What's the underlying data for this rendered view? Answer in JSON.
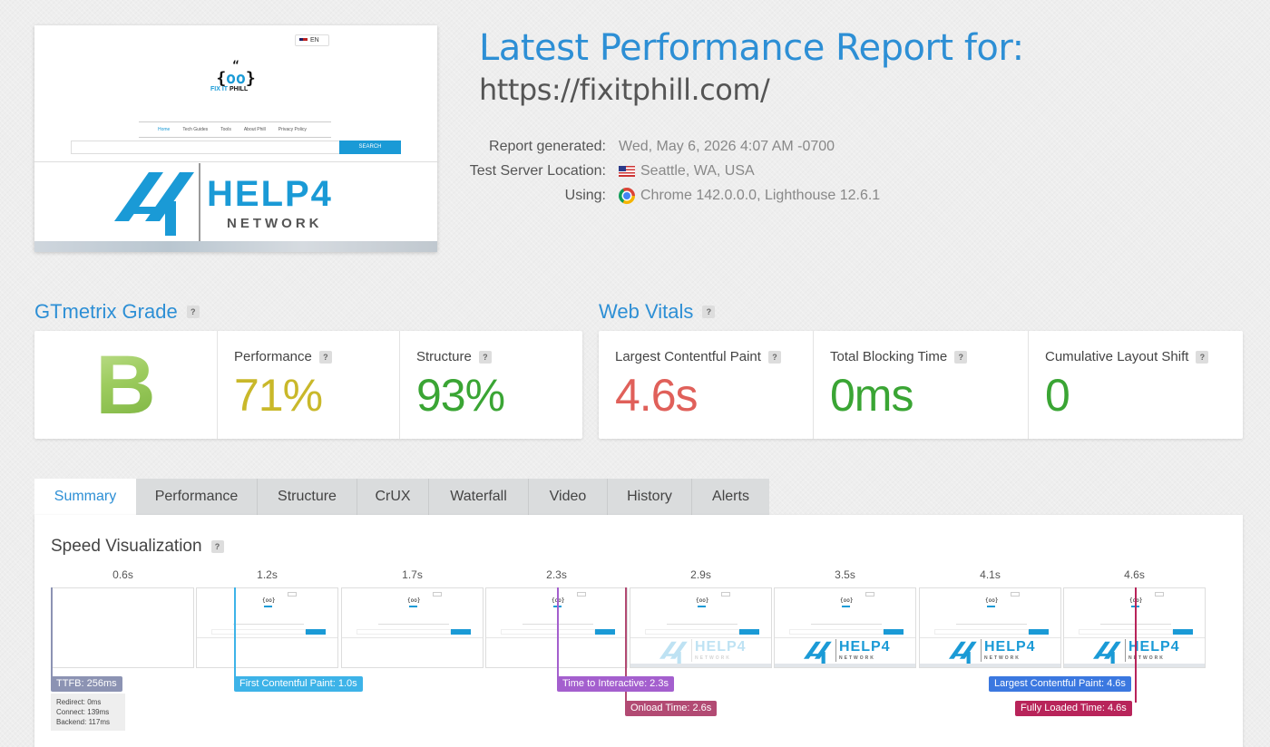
{
  "thumbnail": {
    "lang_label": "EN",
    "site_logo_left": "{",
    "site_logo_mid": "oo",
    "site_logo_right": "}",
    "site_logo_quote": "“",
    "site_name_a": "FIX IT",
    "site_name_b": "PHILL",
    "nav": [
      "Home",
      "Tech Guides",
      "Tools",
      "About Phill",
      "Privacy Policy"
    ],
    "search_button": "SEARCH",
    "brand_main": "HELP4",
    "brand_sub": "NETWORK"
  },
  "header": {
    "title": "Latest Performance Report for:",
    "url": "https://fixitphill.com/"
  },
  "meta": {
    "report_generated_label": "Report generated:",
    "report_generated_value": "Wed, May 6, 2026 4:07 AM -0700",
    "server_location_label": "Test Server Location:",
    "server_location_value": "Seattle, WA, USA",
    "using_label": "Using:",
    "using_value": "Chrome 142.0.0.0, Lighthouse 12.6.1"
  },
  "grade": {
    "title": "GTmetrix Grade",
    "help": "?",
    "letter": "B",
    "performance_label": "Performance",
    "performance_value": "71%",
    "structure_label": "Structure",
    "structure_value": "93%"
  },
  "vitals": {
    "title": "Web Vitals",
    "help": "?",
    "lcp_label": "Largest Contentful Paint",
    "lcp_value": "4.6s",
    "tbt_label": "Total Blocking Time",
    "tbt_value": "0ms",
    "cls_label": "Cumulative Layout Shift",
    "cls_value": "0"
  },
  "tabs": [
    "Summary",
    "Performance",
    "Structure",
    "CrUX",
    "Waterfall",
    "Video",
    "History",
    "Alerts"
  ],
  "speed": {
    "title": "Speed Visualization",
    "help": "?",
    "frame_times": [
      "0.6s",
      "1.2s",
      "1.7s",
      "2.3s",
      "2.9s",
      "3.5s",
      "4.1s",
      "4.6s"
    ],
    "frame_brand": "HELP4",
    "frame_brand_sub": "NETWORK",
    "ttfb": "TTFB: 256ms",
    "redirect": "Redirect: 0ms",
    "connect": "Connect: 139ms",
    "backend": "Backend: 117ms",
    "fcp": "First Contentful Paint: 1.0s",
    "tti": "Time to Interactive: 2.3s",
    "onload": "Onload Time: 2.6s",
    "lcp": "Largest Contentful Paint: 4.6s",
    "fully_loaded": "Fully Loaded Time: 4.6s"
  },
  "colors": {
    "accent": "#2d8fd5",
    "performance": "#c9b82a",
    "good": "#3aa534",
    "poor": "#e0605a",
    "ttfb": "#8c93b3",
    "fcp": "#3db3e8",
    "tti": "#a45fce",
    "onload": "#b24a73",
    "lcp": "#3b78e0",
    "fully_loaded": "#b8245a"
  }
}
